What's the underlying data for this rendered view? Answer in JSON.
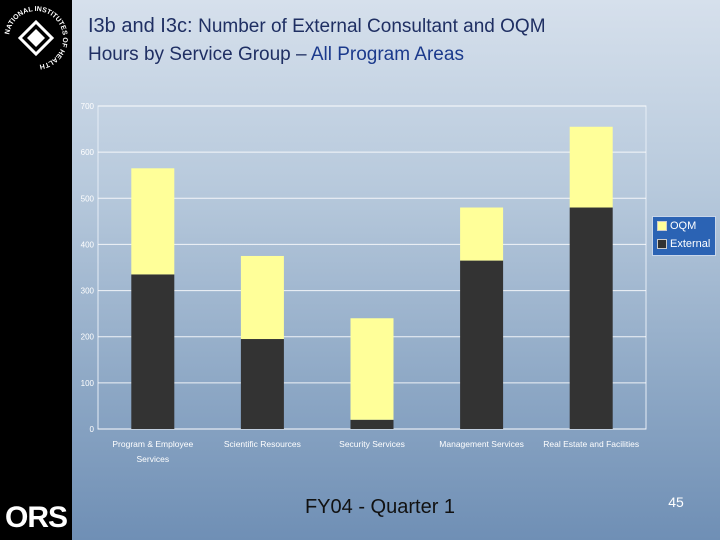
{
  "title": {
    "prefix": "I3b and I3c:",
    "line1_rest": "Number of External Consultant and OQM",
    "line2_start": "Hours by Service Group – ",
    "line2_accent": "All Program Areas"
  },
  "logo": {
    "nih_text": "NATIONAL INSTITUTES OF HEALTH",
    "ors_text": "ORS"
  },
  "footer": {
    "label": "FY04 - Quarter 1",
    "page_number": "45"
  },
  "colors": {
    "oqm": "#ffff99",
    "external": "#333333",
    "legend_bg": "#2b63b4"
  },
  "chart_data": {
    "type": "bar",
    "stacked": true,
    "title": "",
    "xlabel": "",
    "ylabel": "",
    "ylim": [
      0,
      700
    ],
    "yticks": [
      0,
      100,
      200,
      300,
      400,
      500,
      600,
      700
    ],
    "grid": true,
    "legend_position": "right",
    "categories": [
      [
        "Program & Employee",
        "Services"
      ],
      [
        "Scientific Resources"
      ],
      [
        "Security Services"
      ],
      [
        "Management Services"
      ],
      [
        "Real Estate and Facilities"
      ]
    ],
    "series": [
      {
        "name": "External",
        "color": "#333333",
        "values": [
          335,
          195,
          20,
          365,
          480
        ]
      },
      {
        "name": "OQM",
        "color": "#ffff99",
        "values": [
          230,
          180,
          220,
          115,
          175
        ]
      }
    ]
  }
}
